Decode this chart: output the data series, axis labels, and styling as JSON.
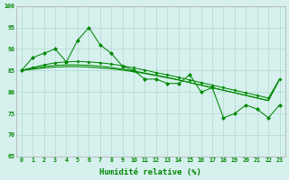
{
  "xlabel": "Humidité relative (%)",
  "xlim": [
    -0.5,
    23.5
  ],
  "ylim": [
    65,
    100
  ],
  "yticks": [
    65,
    70,
    75,
    80,
    85,
    90,
    95,
    100
  ],
  "xticks": [
    0,
    1,
    2,
    3,
    4,
    5,
    6,
    7,
    8,
    9,
    10,
    11,
    12,
    13,
    14,
    15,
    16,
    17,
    18,
    19,
    20,
    21,
    22,
    23
  ],
  "bg_color": "#d6f0ee",
  "grid_color": "#b0d8d0",
  "line_color": "#008800",
  "line_jagged": [
    85,
    88,
    89,
    90,
    87,
    92,
    95,
    91,
    89,
    86,
    85,
    83,
    83,
    82,
    82,
    84,
    80,
    81,
    74,
    75,
    77,
    76,
    74,
    77
  ],
  "line_trend1": [
    85,
    85.7,
    86.3,
    86.8,
    87.0,
    87.1,
    87.0,
    86.8,
    86.5,
    86.1,
    85.6,
    85.1,
    84.5,
    84.0,
    83.4,
    82.8,
    82.2,
    81.6,
    81.0,
    80.4,
    79.8,
    79.2,
    78.6,
    83
  ],
  "line_trend2": [
    85,
    85.5,
    85.9,
    86.2,
    86.3,
    86.3,
    86.2,
    86.0,
    85.7,
    85.3,
    84.9,
    84.4,
    83.9,
    83.4,
    82.8,
    82.2,
    81.6,
    81.0,
    80.4,
    79.8,
    79.2,
    78.6,
    78.0,
    83
  ],
  "line_trend3": [
    85,
    85.3,
    85.6,
    85.8,
    85.9,
    85.9,
    85.8,
    85.6,
    85.4,
    85.1,
    84.7,
    84.3,
    83.8,
    83.3,
    82.8,
    82.2,
    81.6,
    81.0,
    80.4,
    79.8,
    79.2,
    78.6,
    78.0,
    83
  ]
}
